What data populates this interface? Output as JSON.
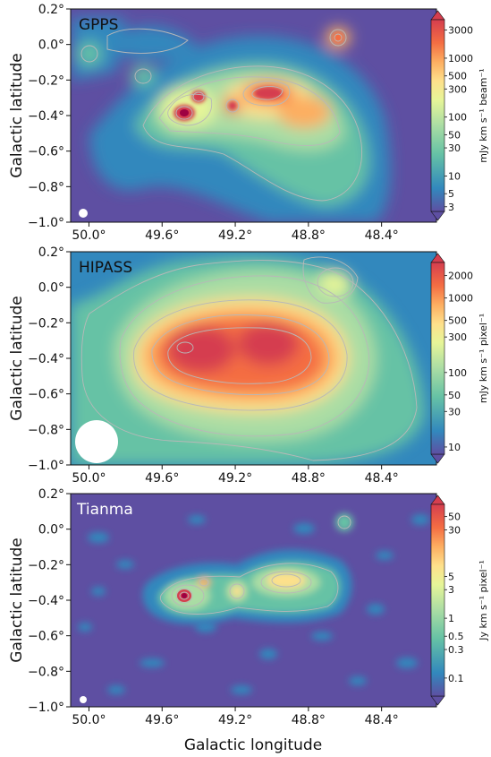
{
  "chart_data": [
    {
      "type": "heatmap",
      "title": "GPPS",
      "xlabel": "",
      "ylabel": "Galactic latitude",
      "xlim": [
        50.1,
        48.1
      ],
      "ylim": [
        -1.0,
        0.2
      ],
      "xticks": [
        "50.0°",
        "49.6°",
        "49.2°",
        "48.8°",
        "48.4°"
      ],
      "xtick_values": [
        50.0,
        49.6,
        49.2,
        48.8,
        48.4
      ],
      "yticks": [
        "0.2°",
        "0.0°",
        "−0.2°",
        "−0.4°",
        "−0.6°",
        "−0.8°",
        "−1.0°"
      ],
      "ytick_values": [
        0.2,
        0.0,
        -0.2,
        -0.4,
        -0.6,
        -0.8,
        -1.0
      ],
      "colorbar": {
        "label": "mJy km s⁻¹ beam⁻¹",
        "scale": "log",
        "ticks": [
          "3000",
          "1000",
          "500",
          "300",
          "100",
          "50",
          "30",
          "10",
          "5",
          "3"
        ],
        "tick_values": [
          3000,
          1000,
          500,
          300,
          100,
          50,
          30,
          10,
          5,
          3
        ],
        "range": [
          2.5,
          4500
        ]
      },
      "contours": true,
      "beam_marker": "bottom-left",
      "emission_peaks": [
        {
          "l": 49.49,
          "b": -0.37,
          "level": 3000
        },
        {
          "l": 49.37,
          "b": -0.3,
          "level": 1500
        },
        {
          "l": 49.21,
          "b": -0.35,
          "level": 600
        },
        {
          "l": 48.92,
          "b": -0.27,
          "level": 800
        },
        {
          "l": 48.61,
          "b": 0.03,
          "level": 500
        }
      ]
    },
    {
      "type": "heatmap",
      "title": "HIPASS",
      "xlabel": "",
      "ylabel": "Galactic latitude",
      "xlim": [
        50.1,
        48.1
      ],
      "ylim": [
        -1.0,
        0.2
      ],
      "xticks": [
        "50.0°",
        "49.6°",
        "49.2°",
        "48.8°",
        "48.4°"
      ],
      "xtick_values": [
        50.0,
        49.6,
        49.2,
        48.8,
        48.4
      ],
      "yticks": [
        "0.2°",
        "0.0°",
        "−0.2°",
        "−0.4°",
        "−0.6°",
        "−0.8°",
        "−1.0°"
      ],
      "ytick_values": [
        0.2,
        0.0,
        -0.2,
        -0.4,
        -0.6,
        -0.8,
        -1.0
      ],
      "colorbar": {
        "label": "mJy km s⁻¹ pixel⁻¹",
        "scale": "log",
        "ticks": [
          "2000",
          "1000",
          "500",
          "300",
          "100",
          "50",
          "30",
          "10"
        ],
        "tick_values": [
          2000,
          1000,
          500,
          300,
          100,
          50,
          30,
          10
        ],
        "range": [
          8,
          3000
        ]
      },
      "contours": true,
      "beam_marker": "bottom-left",
      "emission_peaks": [
        {
          "l": 49.48,
          "b": -0.38,
          "level": 2000
        },
        {
          "l": 49.0,
          "b": -0.33,
          "level": 1600
        },
        {
          "l": 48.53,
          "b": 0.0,
          "level": 150
        }
      ]
    },
    {
      "type": "heatmap",
      "title": "Tianma",
      "xlabel": "Galactic longitude",
      "ylabel": "Galactic latitude",
      "xlim": [
        50.1,
        48.1
      ],
      "ylim": [
        -1.0,
        0.2
      ],
      "xticks": [
        "50.0°",
        "49.6°",
        "49.2°",
        "48.8°",
        "48.4°"
      ],
      "xtick_values": [
        50.0,
        49.6,
        49.2,
        48.8,
        48.4
      ],
      "yticks": [
        "0.2°",
        "0.0°",
        "−0.2°",
        "−0.4°",
        "−0.6°",
        "−0.8°",
        "−1.0°"
      ],
      "ytick_values": [
        0.2,
        0.0,
        -0.2,
        -0.4,
        -0.6,
        -0.8,
        -1.0
      ],
      "colorbar": {
        "label": "Jy km s⁻¹ pixel⁻¹",
        "scale": "log",
        "ticks": [
          "50",
          "30",
          "5",
          "3",
          "1",
          "0.5",
          "0.3",
          "0.1"
        ],
        "tick_values": [
          50,
          30,
          5,
          3,
          1,
          0.5,
          0.3,
          0.1
        ],
        "range": [
          0.05,
          80
        ]
      },
      "contours": true,
      "beam_marker": "bottom-left",
      "emission_peaks": [
        {
          "l": 49.49,
          "b": -0.37,
          "level": 50
        },
        {
          "l": 49.37,
          "b": -0.3,
          "level": 8
        },
        {
          "l": 49.21,
          "b": -0.34,
          "level": 6
        },
        {
          "l": 48.91,
          "b": -0.29,
          "level": 6
        },
        {
          "l": 48.61,
          "b": 0.04,
          "level": 3
        }
      ]
    }
  ],
  "colors": {
    "colormap": [
      "#5e4fa2",
      "#3288bd",
      "#66c2a5",
      "#abdda4",
      "#e6f598",
      "#fee08b",
      "#fdae61",
      "#f46d43",
      "#d53e4f",
      "#9e0142"
    ],
    "contour": "#b0b0b0",
    "beam": "#ffffff"
  }
}
